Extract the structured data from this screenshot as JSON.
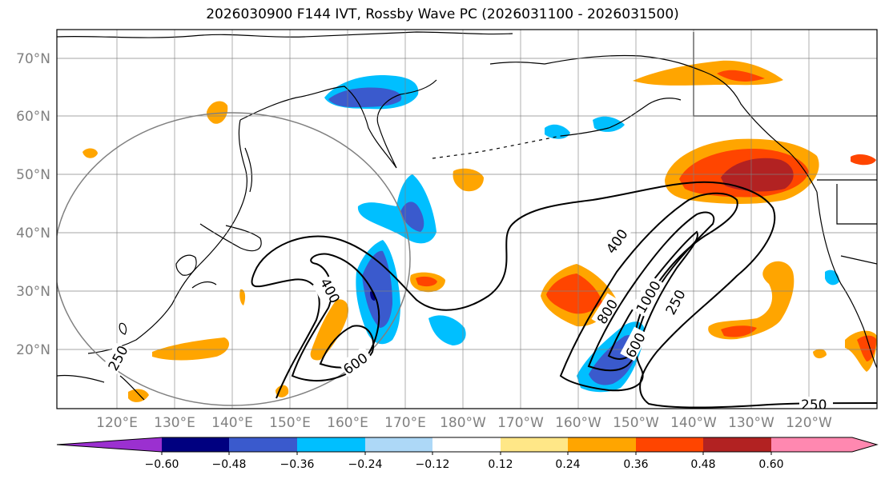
{
  "title": "2026030900 F144 IVT, Rossby Wave PC (2026031100 - 2026031500)",
  "lat_labels": [
    "70°N",
    "60°N",
    "50°N",
    "40°N",
    "30°N",
    "20°N"
  ],
  "lon_labels": [
    "120°E",
    "130°E",
    "140°E",
    "150°E",
    "160°E",
    "170°E",
    "180°W",
    "170°W",
    "160°W",
    "150°W",
    "140°W",
    "130°W",
    "120°W"
  ],
  "colorbar": {
    "colors": [
      "#9b30d0",
      "#000080",
      "#3a5acd",
      "#00bfff",
      "#add8f7",
      "#ffffff",
      "#ffe787",
      "#ffa500",
      "#ff4500",
      "#b22222",
      "#ff88b0"
    ],
    "tick_labels": [
      "−0.60",
      "−0.48",
      "−0.36",
      "−0.24",
      "−0.12",
      "0.12",
      "0.24",
      "0.36",
      "0.48",
      "0.60"
    ]
  },
  "contour_labels": [
    "400",
    "600",
    "250",
    "400",
    "800",
    "1000",
    "600",
    "250",
    "250"
  ]
}
